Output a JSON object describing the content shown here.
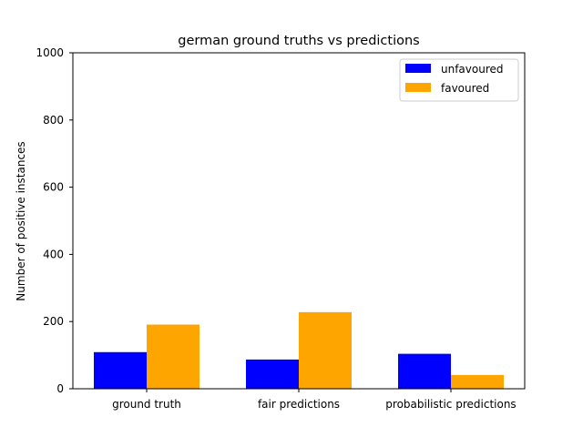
{
  "chart_data": {
    "type": "bar",
    "title": "german ground truths vs predictions",
    "xlabel": "",
    "ylabel": "Number of positive instances",
    "categories": [
      "ground truth",
      "fair predictions",
      "probabilistic predictions"
    ],
    "series": [
      {
        "name": "unfavoured",
        "values": [
          109,
          87,
          104
        ],
        "color": "#0000ff"
      },
      {
        "name": "favoured",
        "values": [
          191,
          228,
          41
        ],
        "color": "#ffa500"
      }
    ],
    "ylim": [
      0,
      1000
    ],
    "yticks": [
      "0",
      "200",
      "400",
      "600",
      "800",
      "1000"
    ],
    "grid": false,
    "legend_position": "top-right"
  }
}
